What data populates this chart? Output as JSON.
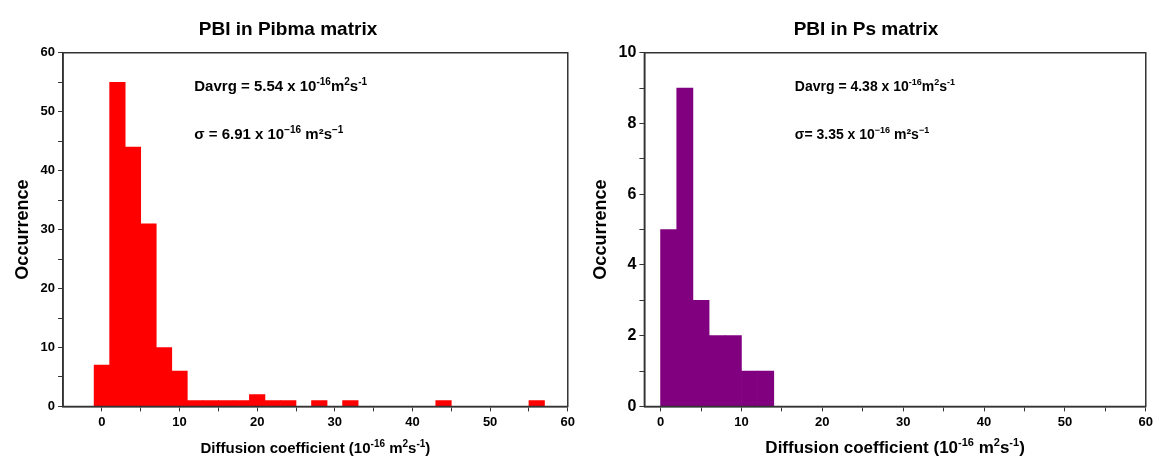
{
  "chart_data": [
    {
      "type": "histogram",
      "title": "PBI in Pibma matrix",
      "xlabel": "Diffusion coefficient (10$^{-16}$ m$^{2}$s$^{-1}$)",
      "ylabel": "Occurrence",
      "color": "#ff0000",
      "bins": [
        -1,
        1,
        3,
        5,
        7,
        9,
        11,
        13,
        15,
        17,
        19,
        21,
        23,
        25,
        27,
        29,
        31,
        33,
        35,
        37,
        39,
        41,
        43,
        45,
        47,
        49,
        51,
        53,
        55,
        57
      ],
      "values": [
        7,
        55,
        44,
        31,
        10,
        6,
        1,
        1,
        1,
        1,
        2,
        1,
        1,
        0,
        1,
        0,
        1,
        0,
        0,
        0,
        0,
        0,
        1,
        0,
        0,
        0,
        0,
        0,
        1
      ],
      "xlim": [
        -5,
        60
      ],
      "xticks": [
        0,
        {
          "value": 5,
          "label": null
        },
        10,
        {
          "value": 15,
          "label": null
        },
        20,
        {
          "value": 25,
          "label": null
        },
        30,
        {
          "value": 35,
          "label": null
        },
        40,
        {
          "value": 45,
          "label": null
        },
        50,
        {
          "value": 55,
          "label": null
        },
        60
      ],
      "ylim": [
        0,
        60
      ],
      "yticks": [
        0,
        {
          "value": 5,
          "label": null
        },
        10,
        {
          "value": 15,
          "label": null
        },
        20,
        {
          "value": 25,
          "label": null
        },
        30,
        {
          "value": 35,
          "label": null
        },
        40,
        {
          "value": 45,
          "label": null
        },
        50,
        {
          "value": 55,
          "label": null
        },
        60
      ],
      "annotations": [
        "Davrg = 5.54 x 10$^{-16}$m$^{2}$s$^{-1}$",
        "σ = 6.91 x 10$^{−16}$ m²s$^{−1}$"
      ]
    },
    {
      "type": "histogram",
      "title": "PBI in Ps matrix",
      "xlabel": "Diffusion coefficient (10$^{-16}$ m$^{2}$s$^{-1}$)",
      "ylabel": "Occurrence",
      "color": "#800080",
      "bins": [
        0,
        2,
        4,
        6,
        8,
        10,
        12,
        14
      ],
      "values": [
        5,
        9,
        3,
        2,
        2,
        1,
        1
      ],
      "xlim": [
        -2,
        60
      ],
      "xticks": [
        0,
        {
          "value": 5,
          "label": null
        },
        10,
        {
          "value": 15,
          "label": null
        },
        20,
        {
          "value": 25,
          "label": null
        },
        30,
        {
          "value": 35,
          "label": null
        },
        40,
        {
          "value": 45,
          "label": null
        },
        50,
        {
          "value": 55,
          "label": null
        },
        60
      ],
      "ylim": [
        0,
        10
      ],
      "yticks": [
        0,
        {
          "value": 1,
          "label": null
        },
        2,
        {
          "value": 3,
          "label": null
        },
        4,
        {
          "value": 5,
          "label": null
        },
        6,
        {
          "value": 7,
          "label": null
        },
        8,
        {
          "value": 9,
          "label": null
        },
        10
      ],
      "annotations": [
        "Davrg = 4.38 x 10$^{-16}$m$^{2}$s$^{-1}$",
        "σ= 3.35 x 10$^{−16}$ m²s$^{−1}$"
      ]
    }
  ]
}
